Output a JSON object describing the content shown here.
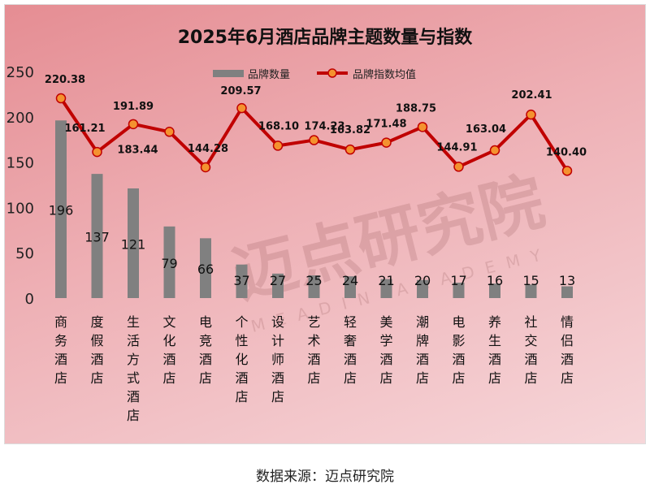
{
  "chart_data": {
    "type": "bar+line",
    "title": "2025年6月酒店品牌主题数量与指数",
    "categories": [
      "商务酒店",
      "度假酒店",
      "生活方式酒店",
      "文化酒店",
      "电竞酒店",
      "个性化酒店",
      "设计师酒店",
      "艺术酒店",
      "轻奢酒店",
      "美学酒店",
      "潮牌酒店",
      "电影酒店",
      "养生酒店",
      "社交酒店",
      "情侣酒店"
    ],
    "series": [
      {
        "name": "品牌数量",
        "type": "bar",
        "color": "#808080",
        "values": [
          196,
          137,
          121,
          79,
          66,
          37,
          27,
          25,
          24,
          21,
          20,
          17,
          16,
          15,
          13
        ]
      },
      {
        "name": "品牌指数均值",
        "type": "line",
        "color": "#c00000",
        "marker_color": "#f4922f",
        "values": [
          220.38,
          161.21,
          191.89,
          183.44,
          144.28,
          209.57,
          168.1,
          174.23,
          163.82,
          171.48,
          188.75,
          144.91,
          163.04,
          202.41,
          140.4
        ]
      }
    ],
    "ylim": [
      0,
      250
    ],
    "yticks": [
      0,
      50,
      100,
      150,
      200,
      250
    ],
    "legend": "top-center",
    "grid": false
  },
  "source": "数据来源：迈点研究院",
  "watermark": {
    "text": "迈点研究院",
    "sub": "MEADIN ACADEMY"
  }
}
